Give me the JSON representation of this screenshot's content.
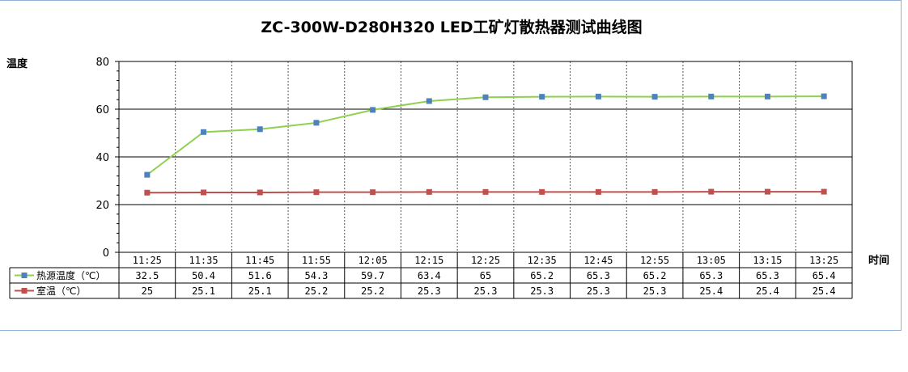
{
  "chart_data": {
    "type": "line",
    "title": "ZC-300W-D280H320 LED工矿灯散热器测试曲线图",
    "ylabel": "温度",
    "xlabel": "时间",
    "ylim": [
      0,
      80
    ],
    "yticks": [
      0,
      20,
      40,
      60,
      80
    ],
    "grid": true,
    "legend": "table-bottom",
    "categories": [
      "11:25",
      "11:35",
      "11:45",
      "11:55",
      "12:05",
      "12:15",
      "12:25",
      "12:35",
      "12:45",
      "12:55",
      "13:05",
      "13:15",
      "13:25"
    ],
    "series": [
      {
        "name": "热源温度（℃）",
        "color": "#8fd14f",
        "marker_color": "#4f81bd",
        "values": [
          32.5,
          50.4,
          51.6,
          54.3,
          59.7,
          63.4,
          65,
          65.2,
          65.3,
          65.2,
          65.3,
          65.3,
          65.4
        ]
      },
      {
        "name": "室温（℃）",
        "color": "#c0504d",
        "marker_color": "#c0504d",
        "values": [
          25,
          25.1,
          25.1,
          25.2,
          25.2,
          25.3,
          25.3,
          25.3,
          25.3,
          25.3,
          25.4,
          25.4,
          25.4
        ]
      }
    ]
  }
}
